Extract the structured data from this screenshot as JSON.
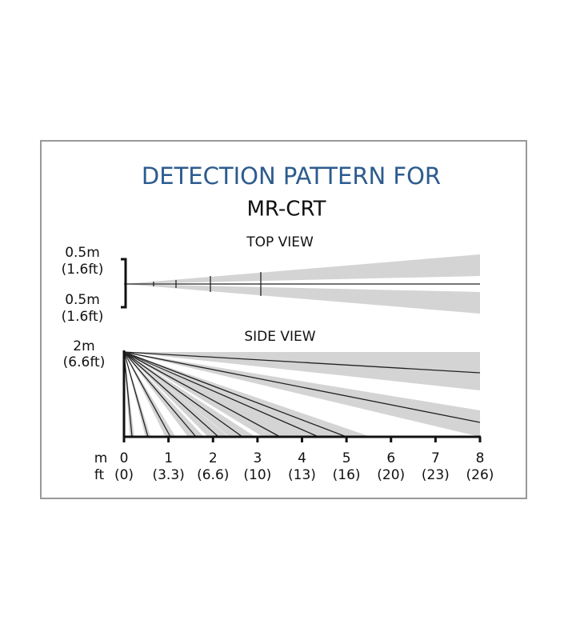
{
  "header": {
    "title": "DETECTION PATTERN FOR",
    "model": "MR-CRT"
  },
  "top_view": {
    "label": "TOP VIEW",
    "upper": {
      "metric": "0.5m",
      "imperial": "(1.6ft)"
    },
    "lower": {
      "metric": "0.5m",
      "imperial": "(1.6ft)"
    }
  },
  "side_view": {
    "label": "SIDE VIEW",
    "height": {
      "metric": "2m",
      "imperial": "(6.6ft)"
    }
  },
  "axis": {
    "metric_unit": "m",
    "imperial_unit": "ft",
    "metric": [
      "0",
      "1",
      "2",
      "3",
      "4",
      "5",
      "6",
      "7",
      "8"
    ],
    "imperial": [
      "(0)",
      "(3.3)",
      "(6.6)",
      "(10)",
      "(13)",
      "(16)",
      "(20)",
      "(23)",
      "(26)"
    ]
  }
}
